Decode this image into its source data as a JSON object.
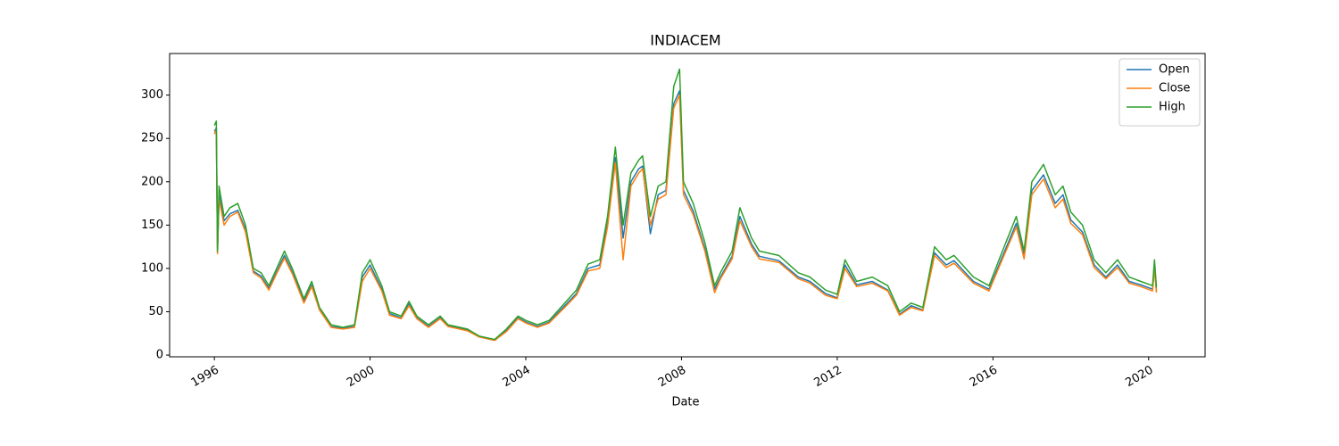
{
  "chart_data": {
    "type": "line",
    "title": "INDIACEM",
    "x_label": "Date",
    "x": [
      1996.0,
      1996.05,
      1996.08,
      1996.12,
      1996.25,
      1996.4,
      1996.6,
      1996.8,
      1997.0,
      1997.2,
      1997.4,
      1997.6,
      1997.8,
      1998.0,
      1998.3,
      1998.5,
      1998.7,
      1999.0,
      1999.3,
      1999.6,
      1999.8,
      2000.0,
      2000.3,
      2000.5,
      2000.8,
      2001.0,
      2001.2,
      2001.5,
      2001.8,
      2002.0,
      2002.5,
      2002.8,
      2003.2,
      2003.5,
      2003.8,
      2004.0,
      2004.3,
      2004.6,
      2005.0,
      2005.3,
      2005.6,
      2005.9,
      2006.1,
      2006.3,
      2006.5,
      2006.7,
      2006.9,
      2007.0,
      2007.2,
      2007.4,
      2007.6,
      2007.8,
      2007.95,
      2008.05,
      2008.3,
      2008.6,
      2008.85,
      2009.0,
      2009.3,
      2009.5,
      2009.8,
      2010.0,
      2010.5,
      2011.0,
      2011.3,
      2011.7,
      2012.0,
      2012.2,
      2012.5,
      2012.9,
      2013.3,
      2013.6,
      2013.9,
      2014.2,
      2014.5,
      2014.8,
      2015.0,
      2015.5,
      2015.9,
      2016.2,
      2016.6,
      2016.8,
      2017.0,
      2017.3,
      2017.6,
      2017.8,
      2018.0,
      2018.3,
      2018.6,
      2018.9,
      2019.2,
      2019.5,
      2019.8,
      2020.1,
      2020.15,
      2020.2
    ],
    "series": [
      {
        "name": "Open",
        "color": "#1f77b4",
        "values": [
          258,
          262,
          118,
          185,
          155,
          163,
          167,
          145,
          97,
          91,
          77,
          96,
          115,
          96,
          62,
          81,
          53,
          33,
          31,
          33,
          90,
          104,
          76,
          48,
          43,
          59,
          43,
          33,
          43,
          34,
          29,
          21,
          17,
          28,
          43,
          38,
          33,
          38,
          57,
          71,
          100,
          104,
          152,
          228,
          135,
          200,
          215,
          218,
          140,
          185,
          190,
          290,
          305,
          190,
          166,
          123,
          76,
          90,
          114,
          160,
          128,
          114,
          109,
          90,
          85,
          71,
          66,
          104,
          81,
          85,
          75,
          47,
          57,
          52,
          118,
          104,
          109,
          85,
          76,
          109,
          152,
          114,
          190,
          208,
          175,
          185,
          156,
          142,
          104,
          90,
          104,
          85,
          81,
          76,
          104,
          74
        ]
      },
      {
        "name": "Close",
        "color": "#ff7f0e",
        "values": [
          255,
          260,
          117,
          180,
          150,
          160,
          165,
          142,
          95,
          89,
          75,
          94,
          112,
          94,
          60,
          79,
          52,
          32,
          30,
          32,
          85,
          100,
          74,
          46,
          42,
          57,
          42,
          32,
          42,
          33,
          28,
          21,
          17,
          27,
          42,
          37,
          32,
          37,
          55,
          69,
          97,
          100,
          148,
          222,
          110,
          195,
          210,
          215,
          150,
          180,
          185,
          285,
          300,
          185,
          162,
          120,
          72,
          88,
          111,
          155,
          125,
          111,
          107,
          88,
          83,
          69,
          65,
          100,
          79,
          83,
          74,
          46,
          55,
          51,
          115,
          101,
          106,
          83,
          74,
          106,
          148,
          111,
          185,
          203,
          170,
          180,
          152,
          139,
          101,
          88,
          101,
          83,
          79,
          74,
          100,
          72
        ]
      },
      {
        "name": "High",
        "color": "#2ca02c",
        "values": [
          265,
          270,
          120,
          195,
          160,
          170,
          175,
          150,
          100,
          95,
          80,
          100,
          120,
          100,
          65,
          85,
          55,
          35,
          32,
          35,
          95,
          110,
          80,
          50,
          45,
          62,
          45,
          35,
          45,
          35,
          30,
          22,
          18,
          30,
          45,
          40,
          35,
          40,
          60,
          75,
          105,
          110,
          160,
          240,
          150,
          210,
          225,
          230,
          160,
          195,
          200,
          310,
          330,
          200,
          175,
          130,
          80,
          95,
          120,
          170,
          135,
          120,
          115,
          95,
          90,
          75,
          70,
          110,
          85,
          90,
          80,
          50,
          60,
          55,
          125,
          110,
          115,
          90,
          80,
          115,
          160,
          120,
          200,
          220,
          185,
          195,
          165,
          150,
          110,
          95,
          110,
          90,
          85,
          80,
          110,
          78
        ]
      }
    ],
    "xlim": [
      1994.85,
      2021.45
    ],
    "xticks": [
      1996,
      2000,
      2004,
      2008,
      2012,
      2016,
      2020
    ],
    "ylim": [
      -2,
      348
    ],
    "yticks": [
      0,
      50,
      100,
      150,
      200,
      250,
      300
    ],
    "legend": "upper right",
    "grid": false
  }
}
